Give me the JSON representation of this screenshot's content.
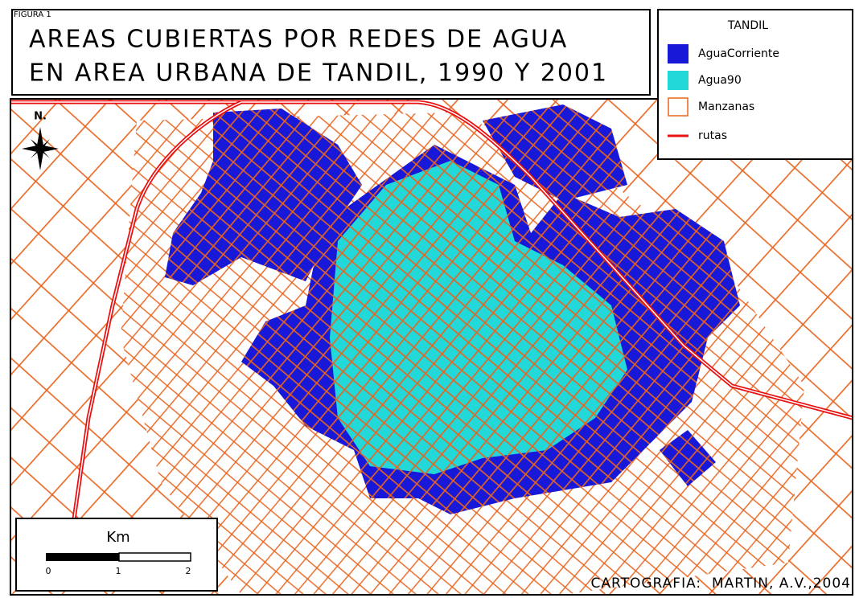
{
  "figure_label": "FIGURA 1",
  "title": {
    "line1": "AREAS CUBIERTAS POR REDES DE AGUA",
    "line2": "EN AREA URBANA DE TANDIL, 1990 Y 2001"
  },
  "legend": {
    "title": "TANDIL",
    "items": [
      {
        "label": "AguaCorriente"
      },
      {
        "label": "Agua90"
      },
      {
        "label": "Manzanas"
      },
      {
        "label": "rutas"
      }
    ]
  },
  "north": "N.",
  "scale": {
    "unit": "Km",
    "labels": [
      "0",
      "1",
      "2"
    ]
  },
  "credit": "CARTOGRAFIA:  MARTIN, A.V.,2004"
}
